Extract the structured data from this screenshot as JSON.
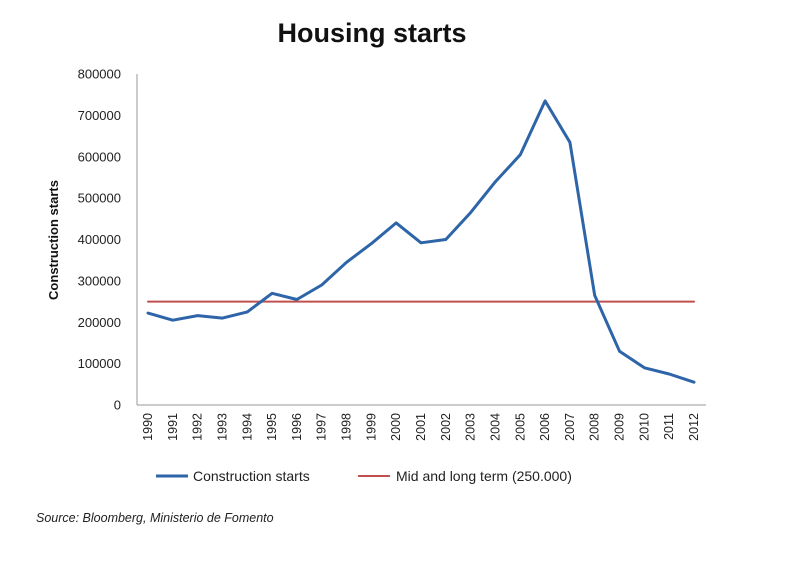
{
  "chart_data": {
    "type": "line",
    "title": "Housing starts",
    "xlabel": "",
    "ylabel": "Construction starts",
    "ylim": [
      0,
      800000
    ],
    "yticks": [
      0,
      100000,
      200000,
      300000,
      400000,
      500000,
      600000,
      700000,
      800000
    ],
    "ytick_labels": [
      "0",
      "100000",
      "200000",
      "300000",
      "400000",
      "500000",
      "600000",
      "700000",
      "800000"
    ],
    "categories": [
      "1990",
      "1991",
      "1992",
      "1993",
      "1994",
      "1995",
      "1996",
      "1997",
      "1998",
      "1999",
      "2000",
      "2001",
      "2002",
      "2003",
      "2004",
      "2005",
      "2006",
      "2007",
      "2008",
      "2009",
      "2010",
      "2011",
      "2012"
    ],
    "series": [
      {
        "name": "Construction starts",
        "color": "#2e64a8",
        "values": [
          222000,
          205000,
          216000,
          210000,
          225000,
          270000,
          255000,
          290000,
          345000,
          390000,
          440000,
          392000,
          400000,
          465000,
          540000,
          605000,
          735000,
          635000,
          265000,
          130000,
          90000,
          75000,
          55000
        ]
      },
      {
        "name": "Mid and long term (250.000)",
        "color": "#c0504d",
        "values": [
          250000,
          250000,
          250000,
          250000,
          250000,
          250000,
          250000,
          250000,
          250000,
          250000,
          250000,
          250000,
          250000,
          250000,
          250000,
          250000,
          250000,
          250000,
          250000,
          250000,
          250000,
          250000,
          250000
        ]
      }
    ],
    "legend_position": "bottom",
    "grid": false
  },
  "source": "Source: Bloomberg, Ministerio de Fomento"
}
